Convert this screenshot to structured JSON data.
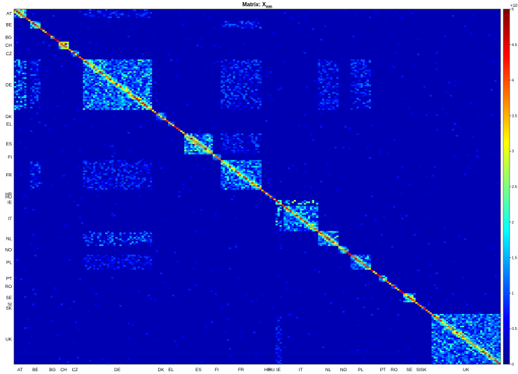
{
  "chart_data": {
    "type": "heatmap",
    "title": "Matrix: X",
    "title_subscript": "nm",
    "xlabel": "",
    "ylabel": "",
    "colormap": "jet",
    "color_range": [
      0,
      5
    ],
    "colorbar_multiplier": "×10",
    "colorbar_ticks": [
      "0",
      "0.5",
      "1",
      "1.5",
      "2",
      "2.5",
      "3",
      "3.5",
      "4",
      "4.5",
      "5"
    ],
    "matrix_size": 240,
    "background_value": 0.25,
    "diagonal_value": 3.6,
    "blocks": [
      {
        "label": "AT",
        "start": 0,
        "size": 6
      },
      {
        "label": "BE",
        "start": 8,
        "size": 5
      },
      {
        "label": "BG",
        "start": 18,
        "size": 2
      },
      {
        "label": "CH",
        "start": 22,
        "size": 5
      },
      {
        "label": "CZ",
        "start": 28,
        "size": 4
      },
      {
        "label": "DE",
        "start": 34,
        "size": 34
      },
      {
        "label": "DK",
        "start": 70,
        "size": 5
      },
      {
        "label": "EL",
        "start": 76,
        "size": 3
      },
      {
        "label": "ES",
        "start": 84,
        "size": 14
      },
      {
        "label": "FI",
        "start": 98,
        "size": 4
      },
      {
        "label": "FR",
        "start": 102,
        "size": 20
      },
      {
        "label": "HR",
        "start": 124,
        "size": 2
      },
      {
        "label": "HU",
        "start": 126,
        "size": 2
      },
      {
        "label": "IE",
        "start": 129,
        "size": 3
      },
      {
        "label": "IT",
        "start": 133,
        "size": 17
      },
      {
        "label": "NL",
        "start": 150,
        "size": 10
      },
      {
        "label": "NO",
        "start": 160,
        "size": 5
      },
      {
        "label": "PL",
        "start": 166,
        "size": 10
      },
      {
        "label": "PT",
        "start": 180,
        "size": 4
      },
      {
        "label": "RO",
        "start": 186,
        "size": 3
      },
      {
        "label": "SE",
        "start": 192,
        "size": 6
      },
      {
        "label": "SI",
        "start": 199,
        "size": 1
      },
      {
        "label": "SK",
        "start": 201,
        "size": 2
      },
      {
        "label": "UK",
        "start": 206,
        "size": 34
      }
    ],
    "block_intensity": {
      "AT": 3.6,
      "BE": 2.6,
      "BG": 1.0,
      "CH": 4.4,
      "CZ": 1.5,
      "DE": 2.8,
      "DK": 1.6,
      "EL": 1.0,
      "ES": 3.2,
      "FI": 2.0,
      "FR": 2.4,
      "HR": 1.0,
      "HU": 1.2,
      "IE": 2.8,
      "IT": 2.6,
      "NL": 3.0,
      "NO": 1.8,
      "PL": 2.2,
      "PT": 2.0,
      "RO": 1.0,
      "SE": 3.4,
      "SI": 1.0,
      "SK": 1.0,
      "UK": 2.6
    },
    "off_diagonal": [
      {
        "rows": "DE",
        "cols": "FR",
        "level": 0.9
      },
      {
        "rows": "FR",
        "cols": "DE",
        "level": 0.8
      },
      {
        "rows": "IE",
        "cols": "IT",
        "level": 2.6
      },
      {
        "rows": "IT",
        "cols": "IE",
        "level": 2.6
      },
      {
        "rows": "NL",
        "cols": "DE",
        "level": 1.2
      },
      {
        "rows": "DE",
        "cols": "NL",
        "level": 0.8
      },
      {
        "rows": "BE",
        "cols": "FR",
        "level": 1.0
      },
      {
        "rows": "FR",
        "cols": "BE",
        "level": 1.0
      },
      {
        "rows": "AT",
        "cols": "DE",
        "level": 0.8
      },
      {
        "rows": "DE",
        "cols": "AT",
        "level": 1.6
      },
      {
        "rows": "PL",
        "cols": "DE",
        "level": 0.7
      },
      {
        "rows": "UK",
        "cols": "IE",
        "level": 0.7
      },
      {
        "rows": "ES",
        "cols": "FR",
        "level": 0.9
      },
      {
        "rows": "DE",
        "cols": "PL",
        "level": 0.9
      },
      {
        "rows": "DE",
        "cols": "BE",
        "level": 0.9
      }
    ]
  }
}
